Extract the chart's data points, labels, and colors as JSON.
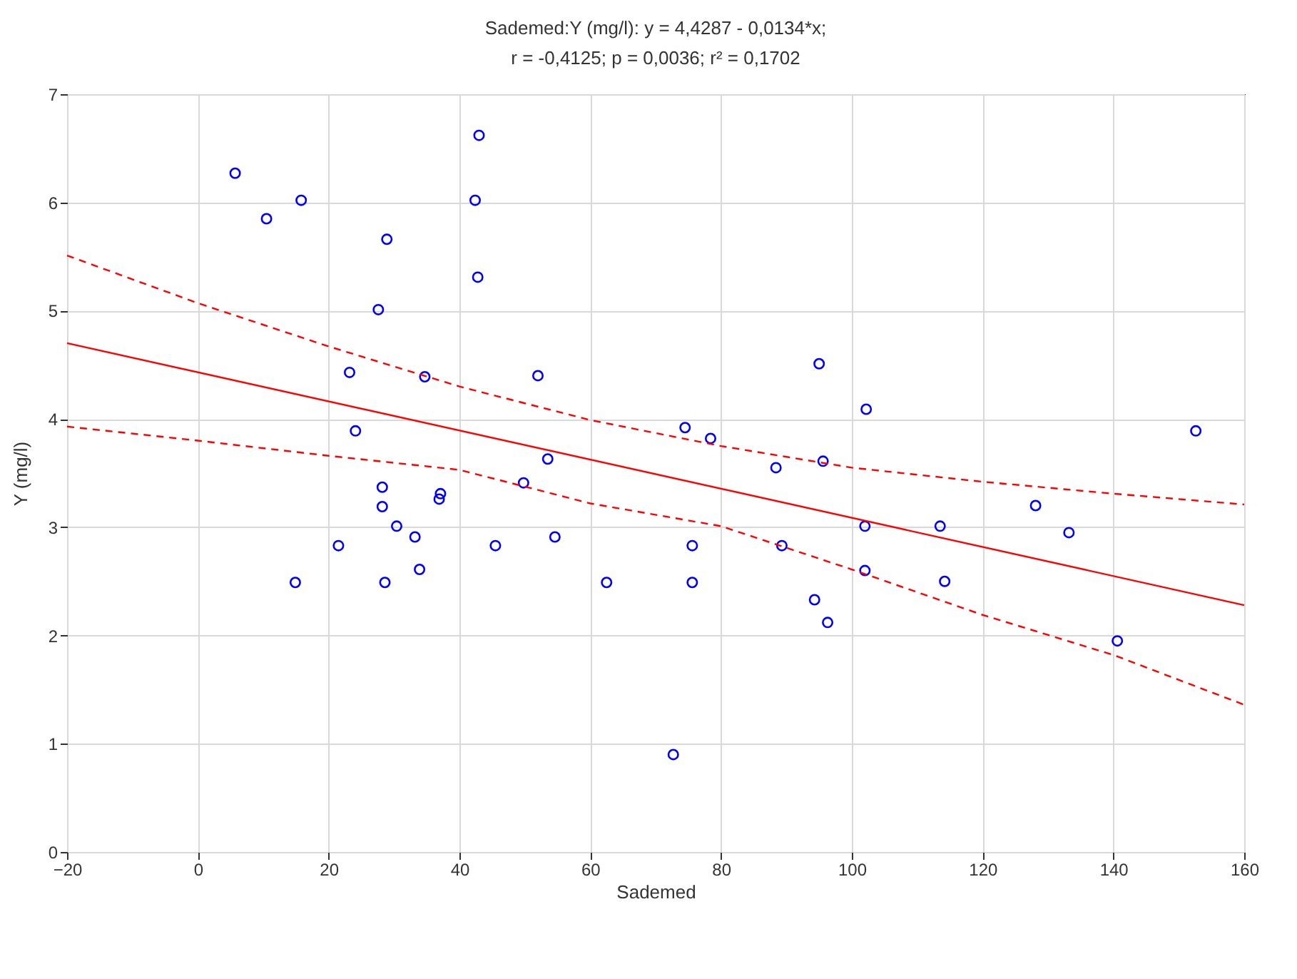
{
  "chart_data": {
    "type": "scatter",
    "title": "Sademed:Y (mg/l):    y = 4,4287 - 0,0134*x;",
    "subtitle": "r = -0,4125; p = 0,0036; r² = 0,1702",
    "xlabel": "Sademed",
    "ylabel": "Y (mg/l)",
    "xlim": [
      -20,
      160
    ],
    "xticks": [
      -20,
      0,
      20,
      40,
      60,
      80,
      100,
      120,
      140,
      160
    ],
    "ylim": [
      0,
      7
    ],
    "yticks": [
      0,
      1,
      2,
      3,
      4,
      5,
      6,
      7
    ],
    "grid": true,
    "series": [
      {
        "color": "#0000ff",
        "marker": "circle",
        "x": [
          5.7,
          10.5,
          15.8,
          43.0,
          42.4,
          28.9,
          42.8,
          27.6,
          23.2,
          34.7,
          52.0,
          24.1,
          53.5,
          28.2,
          37.1,
          36.9,
          28.2,
          49.8,
          30.4,
          33.2,
          21.5,
          45.5,
          54.6,
          33.9,
          14.9,
          28.6,
          62.5,
          74.5,
          78.4,
          88.4,
          95.6,
          95.0,
          102.2,
          75.6,
          75.6,
          89.3,
          94.3,
          96.3,
          72.7,
          102.0,
          102.0,
          113.5,
          114.2,
          128.1,
          133.2,
          140.6,
          152.6
        ],
        "values": [
          6.27,
          5.85,
          6.02,
          6.62,
          6.02,
          5.66,
          5.31,
          5.01,
          4.43,
          4.39,
          4.4,
          3.89,
          3.63,
          3.37,
          3.31,
          3.26,
          3.19,
          3.41,
          3.01,
          2.91,
          2.83,
          2.83,
          2.91,
          2.61,
          2.49,
          2.49,
          2.49,
          3.92,
          3.82,
          3.55,
          3.61,
          4.51,
          4.09,
          2.83,
          2.49,
          2.83,
          2.33,
          2.12,
          0.9,
          3.01,
          2.6,
          3.01,
          2.5,
          3.2,
          2.95,
          1.95,
          3.89
        ]
      },
      {
        "type": "line",
        "color": "#ff0000",
        "line_style": "solid",
        "x": [
          -20,
          160
        ],
        "values": [
          4.7,
          2.28
        ]
      },
      {
        "type": "line",
        "color": "#ff0000",
        "line_style": "dashed",
        "x": [
          -20,
          0,
          20,
          40,
          60,
          80,
          100,
          120,
          140,
          160
        ],
        "values": [
          5.51,
          5.07,
          4.67,
          4.3,
          3.99,
          3.75,
          3.55,
          3.42,
          3.31,
          3.21
        ]
      },
      {
        "type": "line",
        "color": "#ff0000",
        "line_style": "dashed",
        "x": [
          -20,
          0,
          20,
          40,
          60,
          80,
          100,
          120,
          140,
          160
        ],
        "values": [
          3.93,
          3.8,
          3.66,
          3.53,
          3.22,
          3.01,
          2.61,
          2.19,
          1.82,
          1.36
        ]
      }
    ]
  }
}
